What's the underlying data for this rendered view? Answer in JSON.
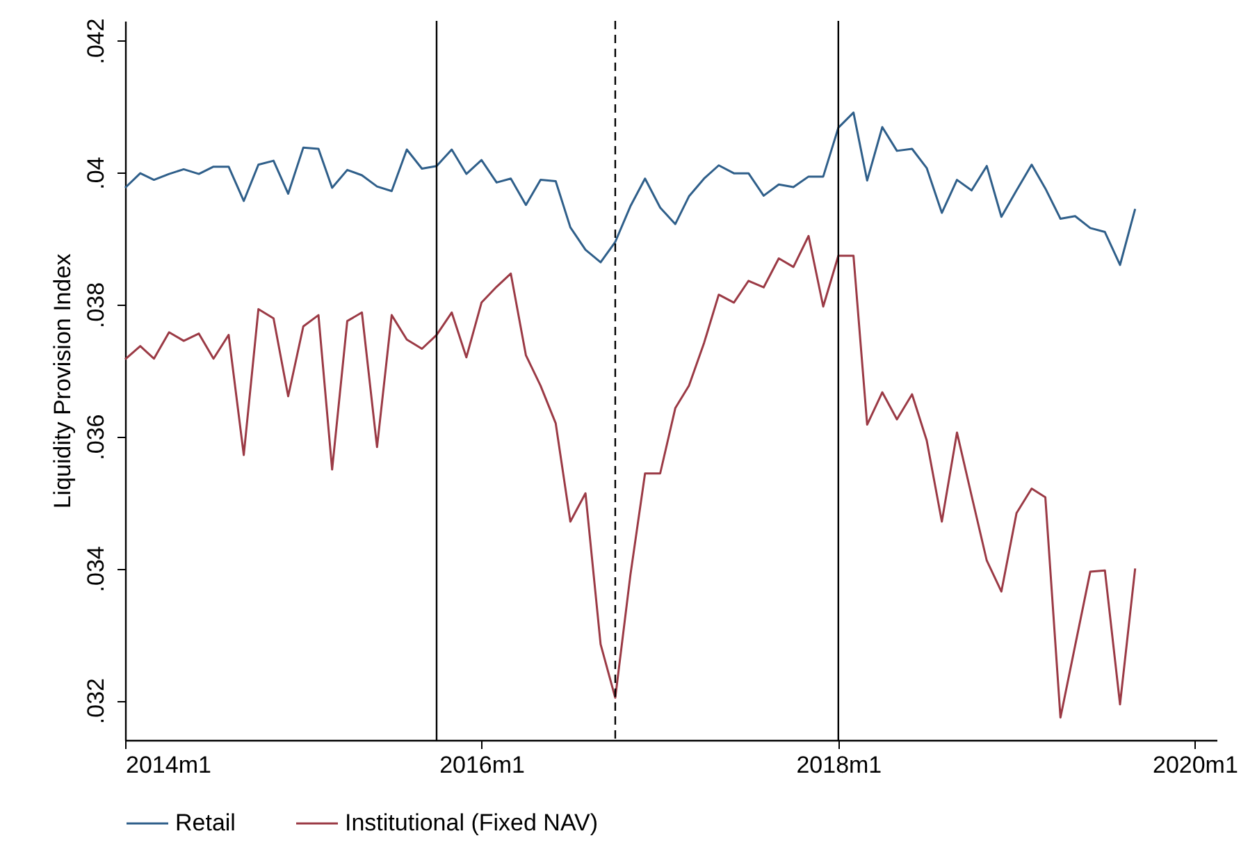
{
  "chart_data": {
    "type": "line",
    "ylabel": "Liquidity Provision Index",
    "x": [
      "2014-01",
      "2014-02",
      "2014-03",
      "2014-04",
      "2014-05",
      "2014-06",
      "2014-07",
      "2014-08",
      "2014-09",
      "2014-10",
      "2014-11",
      "2014-12",
      "2015-01",
      "2015-02",
      "2015-03",
      "2015-04",
      "2015-05",
      "2015-06",
      "2015-07",
      "2015-08",
      "2015-09",
      "2015-10",
      "2015-11",
      "2015-12",
      "2016-01",
      "2016-02",
      "2016-03",
      "2016-04",
      "2016-05",
      "2016-06",
      "2016-07",
      "2016-08",
      "2016-09",
      "2016-10",
      "2016-11",
      "2016-12",
      "2017-01",
      "2017-02",
      "2017-03",
      "2017-04",
      "2017-05",
      "2017-06",
      "2017-07",
      "2017-08",
      "2017-09",
      "2017-10",
      "2017-11",
      "2017-12",
      "2018-01",
      "2018-02",
      "2018-03",
      "2018-04",
      "2018-05",
      "2018-06",
      "2018-07",
      "2018-08",
      "2018-09",
      "2018-10",
      "2018-11",
      "2018-12",
      "2019-01",
      "2019-02",
      "2019-03",
      "2019-04",
      "2019-05",
      "2019-06",
      "2019-07",
      "2019-08",
      "2019-09"
    ],
    "series": [
      {
        "name": "Retail",
        "color": "#2f5f8a",
        "values": [
          0.03977,
          0.03999,
          0.03989,
          0.03998,
          0.04005,
          0.03998,
          0.04009,
          0.04009,
          0.03957,
          0.04012,
          0.04018,
          0.03968,
          0.04038,
          0.04036,
          0.03977,
          0.04004,
          0.03996,
          0.03979,
          0.03972,
          0.04035,
          0.04006,
          0.0401,
          0.04035,
          0.03998,
          0.04019,
          0.03985,
          0.03991,
          0.03951,
          0.03989,
          0.03987,
          0.03917,
          0.03883,
          0.03864,
          0.03895,
          0.03949,
          0.03991,
          0.03947,
          0.03922,
          0.03964,
          0.03991,
          0.04011,
          0.03999,
          0.03999,
          0.03965,
          0.03982,
          0.03978,
          0.03994,
          0.03994,
          0.04068,
          0.04091,
          0.03988,
          0.04069,
          0.04033,
          0.04036,
          0.04007,
          0.03939,
          0.03989,
          0.03973,
          0.0401,
          0.03933,
          0.03973,
          0.04012,
          0.03976,
          0.0393,
          0.03934,
          0.03916,
          0.0391,
          0.0386,
          0.03945
        ]
      },
      {
        "name": "Institutional (Fixed NAV)",
        "color": "#9b3a45",
        "values": [
          0.03717,
          0.03737,
          0.03718,
          0.03758,
          0.03745,
          0.03756,
          0.03718,
          0.03754,
          0.03572,
          0.03793,
          0.03779,
          0.03661,
          0.03767,
          0.03784,
          0.0355,
          0.03775,
          0.03788,
          0.03584,
          0.03784,
          0.03747,
          0.03733,
          0.03754,
          0.03788,
          0.0372,
          0.03803,
          0.03827,
          0.03847,
          0.03723,
          0.03677,
          0.0362,
          0.03471,
          0.03514,
          0.03285,
          0.03204,
          0.0339,
          0.03544,
          0.03544,
          0.03643,
          0.03677,
          0.03742,
          0.03815,
          0.03803,
          0.03836,
          0.03826,
          0.0387,
          0.03857,
          0.03904,
          0.03797,
          0.03874,
          0.03874,
          0.03618,
          0.03667,
          0.03626,
          0.03664,
          0.03594,
          0.03471,
          0.03606,
          0.0351,
          0.03412,
          0.03365,
          0.03484,
          0.03521,
          0.03508,
          0.03174,
          0.03283,
          0.03395,
          0.03397,
          0.03194,
          0.034
        ]
      }
    ],
    "xlim": [
      "2014-01",
      "2020-02-15"
    ],
    "xticks": [
      {
        "value": "2014-01",
        "label": "2014m1"
      },
      {
        "value": "2016-01",
        "label": "2016m1"
      },
      {
        "value": "2018-01",
        "label": "2018m1"
      },
      {
        "value": "2020-01",
        "label": "2020m1"
      }
    ],
    "ylim": [
      0.0314,
      0.0423
    ],
    "yticks": [
      {
        "value": 0.032,
        "label": ".032"
      },
      {
        "value": 0.034,
        "label": ".034"
      },
      {
        "value": 0.036,
        "label": ".036"
      },
      {
        "value": 0.038,
        "label": ".038"
      },
      {
        "value": 0.04,
        "label": ".04"
      },
      {
        "value": 0.042,
        "label": ".042"
      }
    ],
    "ref_lines": [
      {
        "axis": "x",
        "value": "2015-10",
        "color": "#000000",
        "line_style": "solid"
      },
      {
        "axis": "x",
        "value": "2016-10",
        "color": "#000000",
        "line_style": "dashed"
      },
      {
        "axis": "x",
        "value": "2018-01",
        "color": "#000000",
        "line_style": "solid"
      }
    ],
    "legend": "bottom",
    "grid": false,
    "line_style": "solid"
  }
}
